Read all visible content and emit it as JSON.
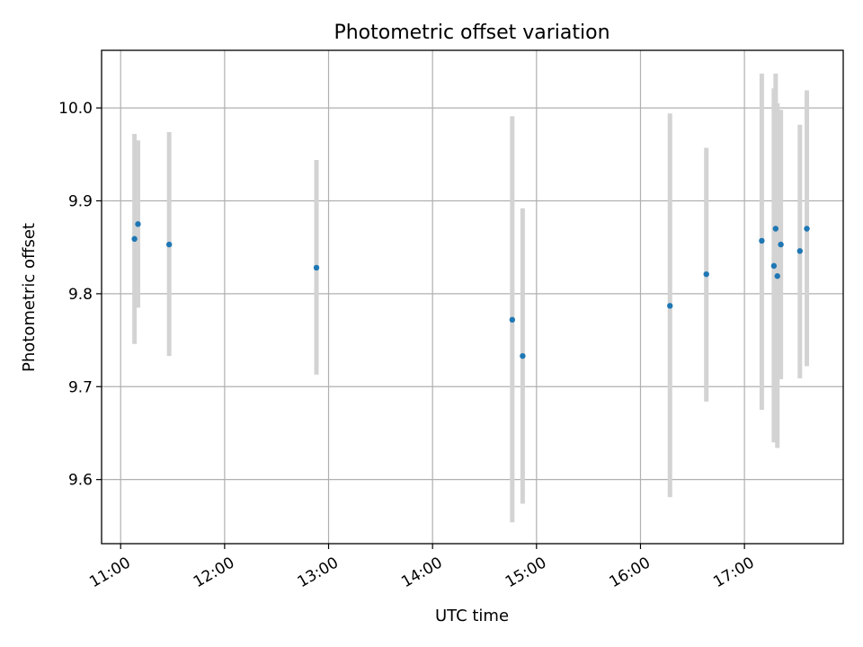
{
  "chart_data": {
    "type": "scatter",
    "title": "Photometric offset variation",
    "xlabel": "UTC time",
    "ylabel": "Photometric offset",
    "x_type": "time",
    "xlim": [
      "10:49",
      "17:57"
    ],
    "ylim": [
      9.531,
      10.062
    ],
    "x_ticks": [
      "11:00",
      "12:00",
      "13:00",
      "14:00",
      "15:00",
      "16:00",
      "17:00"
    ],
    "y_ticks": [
      9.6,
      9.7,
      9.8,
      9.9,
      10.0
    ],
    "y_tick_labels": [
      "9.6",
      "9.7",
      "9.8",
      "9.9",
      "10.0"
    ],
    "grid": true,
    "marker_color": "#1f77b4",
    "errorbar_color": "#d3d3d3",
    "points": [
      {
        "t": "11:08",
        "y": 9.859,
        "lo": 9.746,
        "hi": 9.972
      },
      {
        "t": "11:10",
        "y": 9.875,
        "lo": 9.785,
        "hi": 9.965
      },
      {
        "t": "11:28",
        "y": 9.853,
        "lo": 9.733,
        "hi": 9.974
      },
      {
        "t": "12:53",
        "y": 9.828,
        "lo": 9.713,
        "hi": 9.944
      },
      {
        "t": "14:46",
        "y": 9.772,
        "lo": 9.554,
        "hi": 9.991
      },
      {
        "t": "14:52",
        "y": 9.733,
        "lo": 9.574,
        "hi": 9.892
      },
      {
        "t": "16:17",
        "y": 9.787,
        "lo": 9.581,
        "hi": 9.994
      },
      {
        "t": "16:38",
        "y": 9.821,
        "lo": 9.684,
        "hi": 9.957
      },
      {
        "t": "17:10",
        "y": 9.857,
        "lo": 9.675,
        "hi": 10.037
      },
      {
        "t": "17:17",
        "y": 9.83,
        "lo": 9.64,
        "hi": 10.021
      },
      {
        "t": "17:18",
        "y": 9.87,
        "lo": 9.701,
        "hi": 10.037
      },
      {
        "t": "17:19",
        "y": 9.819,
        "lo": 9.634,
        "hi": 10.005
      },
      {
        "t": "17:21",
        "y": 9.853,
        "lo": 9.708,
        "hi": 9.998
      },
      {
        "t": "17:32",
        "y": 9.846,
        "lo": 9.709,
        "hi": 9.982
      },
      {
        "t": "17:36",
        "y": 9.87,
        "lo": 9.722,
        "hi": 10.019
      }
    ]
  }
}
